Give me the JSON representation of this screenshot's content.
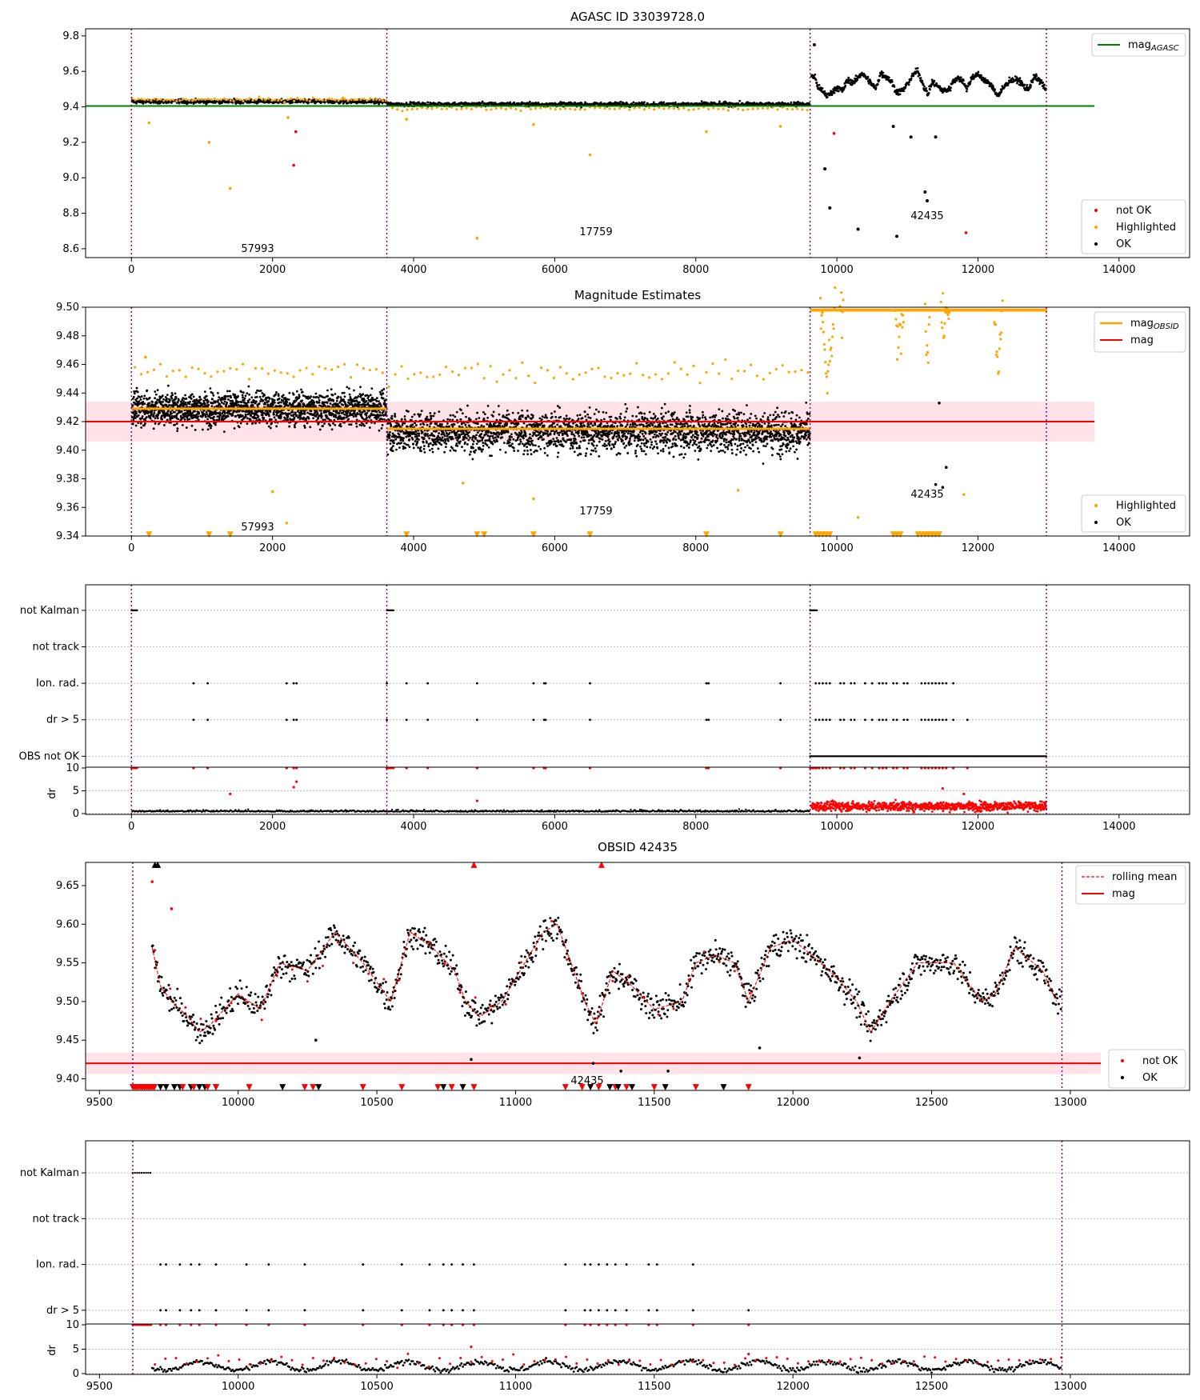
{
  "panels": {
    "agasc": {
      "title": "AGASC ID 33039728.0",
      "ylim": [
        8.55,
        9.84
      ],
      "yticks": [
        "8.6",
        "8.8",
        "9.0",
        "9.2",
        "9.4",
        "9.6",
        "9.8"
      ],
      "obsids": [
        "57993",
        "17759",
        "42435"
      ],
      "legend_line": "mag",
      "legend_line_sub": "AGASC",
      "legend_points": [
        "not OK",
        "Highlighted",
        "OK"
      ]
    },
    "estimates": {
      "title": "Magnitude Estimates",
      "ylim": [
        9.34,
        9.5
      ],
      "yticks": [
        "9.34",
        "9.36",
        "9.38",
        "9.40",
        "9.42",
        "9.44",
        "9.46",
        "9.48",
        "9.50"
      ],
      "obsids": [
        "57993",
        "17759",
        "42435"
      ],
      "legend_lines": [
        "mag",
        "mag"
      ],
      "legend_line_sub": "OBSID",
      "legend_points": [
        "Highlighted",
        "OK"
      ]
    },
    "flags_all": {
      "categories": [
        "not Kalman",
        "not track",
        "Ion. rad.",
        "dr > 5",
        "OBS not OK"
      ],
      "dr_label": "dr",
      "dr_ticks": [
        "0",
        "5",
        "10"
      ]
    },
    "obsid": {
      "title": "OBSID 42435",
      "ylim": [
        9.385,
        9.68
      ],
      "yticks": [
        "9.40",
        "9.45",
        "9.50",
        "9.55",
        "9.60",
        "9.65"
      ],
      "obsid_label": "42435",
      "legend_lines": [
        "rolling mean",
        "mag"
      ],
      "legend_points": [
        "not OK",
        "OK"
      ]
    },
    "flags_obsid": {
      "categories": [
        "not Kalman",
        "not track",
        "Ion. rad.",
        "dr > 5"
      ],
      "dr_label": "dr",
      "dr_ticks": [
        "0",
        "5",
        "10"
      ]
    }
  },
  "xticks_full": [
    "0",
    "2000",
    "4000",
    "6000",
    "8000",
    "10000",
    "12000",
    "14000"
  ],
  "xticks_obsid": [
    "9500",
    "10000",
    "10500",
    "11000",
    "11500",
    "12000",
    "12500",
    "13000"
  ],
  "colors": {
    "agasc_line": "#008000",
    "mag_line": "#ff0000",
    "mag_band": "#ffc0cb",
    "highlighted": "#ffa500",
    "ok": "#000000",
    "not_ok": "#ff0000",
    "boundary": "#800080"
  },
  "chart_data": [
    {
      "type": "scatter",
      "title": "AGASC ID 33039728.0",
      "xlim": [
        -650,
        15000
      ],
      "ylim": [
        8.55,
        9.84
      ],
      "mag_agasc": 9.405,
      "obsid_boundaries": [
        0,
        3620,
        9620,
        12970
      ],
      "segments": [
        {
          "obsid": "57993",
          "x_range": [
            0,
            3620
          ],
          "mean": 9.43,
          "scatter": 0.01
        },
        {
          "obsid": "17759",
          "x_range": [
            3620,
            9620
          ],
          "mean": 9.415,
          "scatter": 0.01
        },
        {
          "obsid": "42435",
          "x_range": [
            9620,
            12970
          ],
          "mean": 9.53,
          "range": [
            9.44,
            9.64
          ]
        }
      ],
      "series": [
        {
          "name": "not OK",
          "points": [
            [
              2300,
              9.07
            ],
            [
              2330,
              9.26
            ],
            [
              9960,
              9.25
            ],
            [
              11830,
              8.69
            ]
          ]
        },
        {
          "name": "Highlighted",
          "points": [
            [
              250,
              9.31
            ],
            [
              1100,
              9.2
            ],
            [
              1400,
              8.94
            ],
            [
              2220,
              9.34
            ],
            [
              3000,
              9.45
            ],
            [
              3900,
              9.33
            ],
            [
              4900,
              8.66
            ],
            [
              5700,
              9.3
            ],
            [
              6500,
              9.13
            ],
            [
              8150,
              9.26
            ],
            [
              9200,
              9.29
            ]
          ]
        },
        {
          "name": "OK",
          "points": [
            [
              9680,
              9.75
            ],
            [
              9830,
              9.05
            ],
            [
              9900,
              8.83
            ],
            [
              10300,
              8.71
            ],
            [
              10850,
              8.67
            ],
            [
              10800,
              9.29
            ],
            [
              11050,
              9.23
            ],
            [
              11250,
              8.92
            ],
            [
              11280,
              8.87
            ],
            [
              11400,
              9.23
            ]
          ]
        }
      ]
    },
    {
      "type": "scatter",
      "title": "Magnitude Estimates",
      "xlim": [
        -650,
        15000
      ],
      "ylim": [
        9.34,
        9.5
      ],
      "mag": 9.42,
      "mag_band": [
        9.406,
        9.434
      ],
      "mag_obsid": [
        {
          "obsid": "57993",
          "x_range": [
            0,
            3620
          ],
          "value": 9.429
        },
        {
          "obsid": "17759",
          "x_range": [
            3620,
            9620
          ],
          "value": 9.415
        },
        {
          "obsid": "42435",
          "x_range": [
            9620,
            12970
          ],
          "value": 9.498
        }
      ],
      "series": [
        {
          "name": "Highlighted",
          "points": [
            [
              200,
              9.465
            ],
            [
              2000,
              9.371
            ],
            [
              2200,
              9.349
            ],
            [
              4700,
              9.377
            ],
            [
              5700,
              9.366
            ],
            [
              8600,
              9.372
            ],
            [
              10300,
              9.353
            ],
            [
              11800,
              9.369
            ]
          ]
        },
        {
          "name": "OK",
          "points": [
            [
              11400,
              9.376
            ],
            [
              11500,
              9.374
            ],
            [
              11550,
              9.388
            ],
            [
              11450,
              9.433
            ]
          ]
        }
      ]
    },
    {
      "type": "scatter",
      "title": "",
      "xlim": [
        -650,
        15000
      ],
      "categories": [
        "not Kalman",
        "not track",
        "Ion. rad.",
        "dr > 5",
        "OBS not OK"
      ],
      "flag_ranges": {
        "not Kalman": [
          [
            0,
            80
          ],
          [
            3620,
            3720
          ],
          [
            9620,
            9720
          ]
        ],
        "OBS not OK": [
          [
            9620,
            12970
          ]
        ]
      },
      "flag_points": {
        "Ion. rad.": [
          880,
          1080,
          2200,
          2300,
          2340,
          3620,
          3900,
          4200,
          4900,
          5700,
          5850,
          5870,
          6500,
          8150,
          8180,
          9200,
          9700,
          9750,
          9800,
          9850,
          9900,
          10050,
          10100,
          10200,
          10250,
          10400,
          10500,
          10600,
          10650,
          10700,
          10800,
          10850,
          10950,
          11000,
          11200,
          11250,
          11300,
          11350,
          11400,
          11450,
          11500,
          11550,
          11650
        ],
        "dr > 5": [
          880,
          1080,
          2200,
          2300,
          2340,
          3620,
          3900,
          4200,
          4900,
          5700,
          5850,
          5870,
          6500,
          8150,
          8180,
          9200,
          9700,
          9750,
          9800,
          9850,
          9900,
          10050,
          10100,
          10200,
          10250,
          10400,
          10500,
          10600,
          10650,
          10700,
          10800,
          10850,
          10950,
          11000,
          11200,
          11250,
          11300,
          11350,
          11400,
          11450,
          11500,
          11550,
          11650,
          11850
        ]
      },
      "dr_ylim": [
        0,
        10
      ]
    },
    {
      "type": "line",
      "title": "OBSID 42435",
      "xlim": [
        9450,
        13430
      ],
      "ylim": [
        9.385,
        9.68
      ],
      "mag": 9.42,
      "mag_band": [
        9.406,
        9.434
      ],
      "rolling_mean": {
        "x": [
          9690,
          9720,
          9760,
          9820,
          9860,
          9900,
          10000,
          10080,
          10150,
          10250,
          10350,
          10450,
          10550,
          10620,
          10700,
          10780,
          10820,
          10870,
          10950,
          11050,
          11100,
          11150,
          11250,
          11290,
          11350,
          11420,
          11500,
          11600,
          11650,
          11720,
          11790,
          11840,
          11920,
          12000,
          12100,
          12160,
          12230,
          12280,
          12350,
          12450,
          12500,
          12580,
          12680,
          12730,
          12800,
          12900,
          12950
        ],
        "values": [
          9.57,
          9.52,
          9.5,
          9.48,
          9.46,
          9.47,
          9.51,
          9.49,
          9.55,
          9.54,
          9.59,
          9.55,
          9.5,
          9.59,
          9.57,
          9.54,
          9.5,
          9.48,
          9.5,
          9.56,
          9.59,
          9.6,
          9.5,
          9.47,
          9.54,
          9.52,
          9.49,
          9.5,
          9.55,
          9.56,
          9.55,
          9.5,
          9.57,
          9.58,
          9.55,
          9.53,
          9.5,
          9.46,
          9.5,
          9.55,
          9.55,
          9.55,
          9.5,
          9.51,
          9.57,
          9.54,
          9.5
        ]
      },
      "series": [
        {
          "name": "not OK",
          "points": [
            [
              9690,
              9.655
            ],
            [
              9760,
              9.62
            ]
          ]
        },
        {
          "name": "OK",
          "points": [
            [
              10280,
              9.45
            ],
            [
              10840,
              9.425
            ],
            [
              11280,
              9.42
            ],
            [
              11380,
              9.41
            ],
            [
              11550,
              9.41
            ],
            [
              11880,
              9.44
            ],
            [
              12240,
              9.427
            ]
          ]
        }
      ]
    },
    {
      "type": "scatter",
      "title": "",
      "xlim": [
        9450,
        13430
      ],
      "categories": [
        "not Kalman",
        "not track",
        "Ion. rad.",
        "dr > 5"
      ],
      "flag_ranges": {
        "not Kalman": [
          [
            9620,
            9690
          ]
        ]
      },
      "flag_points": {
        "Ion. rad.": [
          9720,
          9740,
          9790,
          9830,
          9860,
          9920,
          10030,
          10110,
          10240,
          10450,
          10590,
          10690,
          10740,
          10770,
          10810,
          10850,
          11180,
          11250,
          11270,
          11300,
          11330,
          11360,
          11400,
          11480,
          11510,
          11640
        ],
        "dr > 5": [
          9720,
          9740,
          9790,
          9830,
          9860,
          9920,
          10030,
          10110,
          10240,
          10450,
          10590,
          10690,
          10740,
          10770,
          10810,
          10850,
          11180,
          11250,
          11270,
          11300,
          11330,
          11360,
          11400,
          11480,
          11510,
          11640,
          11840
        ]
      },
      "dr_ylim": [
        0,
        10
      ]
    }
  ]
}
